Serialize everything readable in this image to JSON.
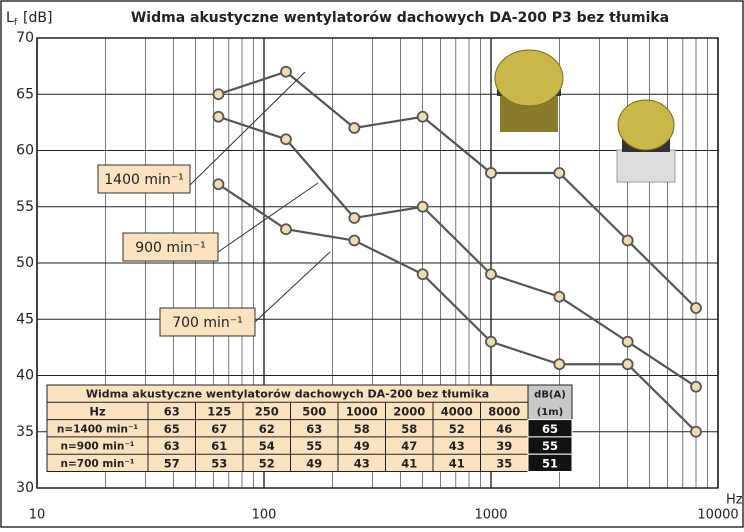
{
  "chart_data": {
    "type": "line",
    "title": "Widma akustyczne wentylatorów dachowych DA-200 P3 bez tłumika",
    "ylabel": {
      "symbol": "L",
      "subscript": "f",
      "unit": "[dB]"
    },
    "xlabel": "Hz",
    "xscale": "log",
    "xlim": [
      10,
      10000
    ],
    "xticks": [
      10,
      100,
      1000,
      10000
    ],
    "ylim": [
      30,
      70
    ],
    "yticks": [
      30,
      35,
      40,
      45,
      50,
      55,
      60,
      65,
      70
    ],
    "grid": true,
    "x": [
      63,
      125,
      250,
      500,
      1000,
      2000,
      4000,
      8000
    ],
    "series": [
      {
        "name": "1400 min⁻¹",
        "color": "#555555",
        "values": [
          65,
          67,
          62,
          63,
          58,
          58,
          52,
          46
        ]
      },
      {
        "name": "900 min⁻¹",
        "color": "#555555",
        "values": [
          63,
          61,
          54,
          55,
          49,
          47,
          43,
          39
        ]
      },
      {
        "name": "700 min⁻¹",
        "color": "#555555",
        "values": [
          57,
          53,
          52,
          49,
          43,
          41,
          41,
          35
        ]
      }
    ],
    "table": {
      "title": "Widma akustyczne wentylatorów dachowych DA-200 bez tłumika",
      "header": "Hz",
      "dba_header": [
        "dB(A)",
        "(1m)"
      ],
      "row_labels": [
        "n=1400 min⁻¹",
        "n=900 min⁻¹",
        "n=700 min⁻¹"
      ],
      "dba": [
        65,
        55,
        51
      ]
    }
  }
}
